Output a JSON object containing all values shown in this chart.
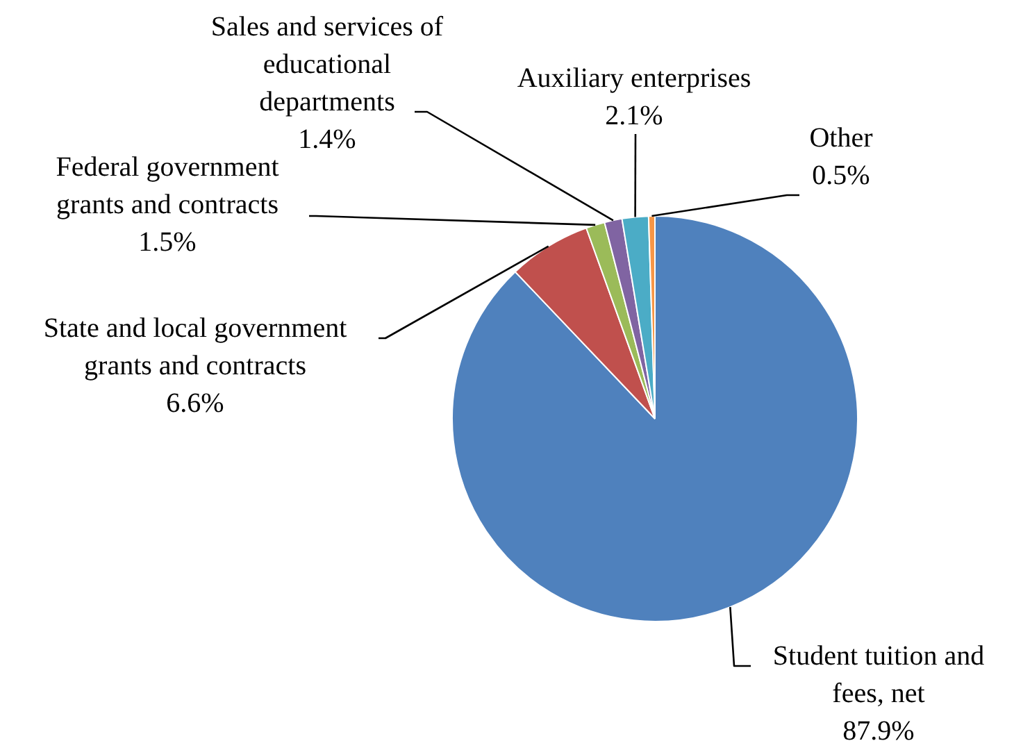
{
  "chart_data": {
    "type": "pie",
    "categories": [
      "Student tuition and fees, net",
      "State and local government grants and contracts",
      "Federal government grants and contracts",
      "Sales and services of educational departments",
      "Auxiliary enterprises",
      "Other"
    ],
    "values": [
      87.9,
      6.6,
      1.5,
      1.4,
      2.1,
      0.5
    ],
    "value_labels": [
      "87.9%",
      "6.6%",
      "1.5%",
      "1.4%",
      "2.1%",
      "0.5%"
    ],
    "colors": [
      "#4f81bd",
      "#c0504d",
      "#9bbb59",
      "#8064a2",
      "#4bacc6",
      "#f79646"
    ]
  }
}
